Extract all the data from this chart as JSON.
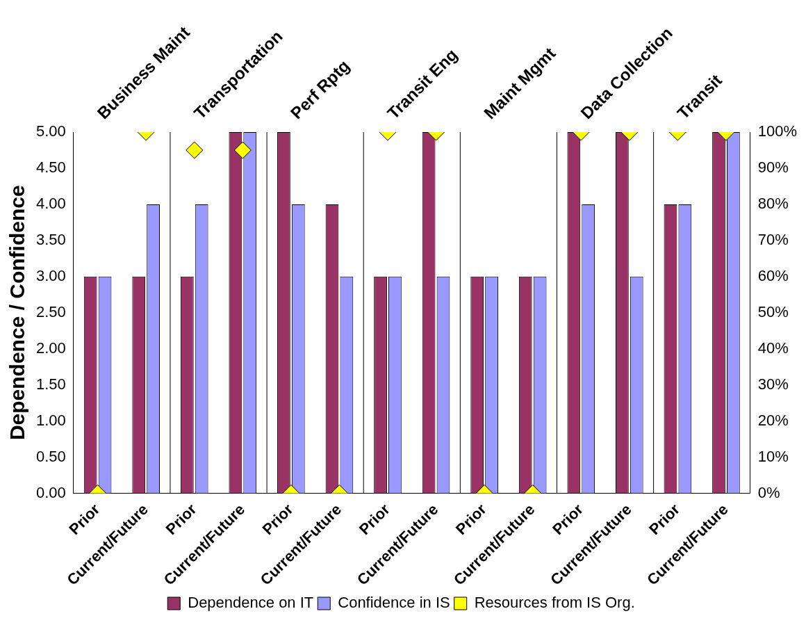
{
  "chart_data": {
    "type": "bar",
    "ylabel": "Dependence / Confidence",
    "categories": [
      "Prior",
      "Current/Future",
      "Prior",
      "Current/Future",
      "Prior",
      "Current/Future",
      "Prior",
      "Current/Future",
      "Prior",
      "Current/Future",
      "Prior",
      "Current/Future",
      "Prior",
      "Current/Future"
    ],
    "annotations": [
      "Business Maint",
      "Transportation",
      "Perf Rptg",
      "Transit Eng",
      "Maint Mgmt",
      "Data Collection",
      "Transit"
    ],
    "series": [
      {
        "name": "Dependence on IT",
        "color": "#993366",
        "values": [
          3,
          3,
          3,
          5,
          5,
          4,
          3,
          5,
          3,
          3,
          5,
          5,
          4,
          5
        ]
      },
      {
        "name": "Confidence in IS",
        "color": "#9999ff",
        "values": [
          3,
          4,
          4,
          5,
          4,
          3,
          3,
          3,
          3,
          3,
          4,
          3,
          4,
          5
        ]
      },
      {
        "name": "Resources from IS Org.",
        "type": "scatter",
        "axis": "y2",
        "marker": "diamond",
        "color": "#ffff00",
        "values": [
          0,
          100,
          95,
          95,
          0,
          0,
          100,
          100,
          0,
          0,
          100,
          100,
          100,
          100
        ]
      }
    ],
    "ylim": [
      0,
      5
    ],
    "yticks": [
      {
        "value": 0,
        "label": "0.00"
      },
      {
        "value": 0.5,
        "label": "0.50"
      },
      {
        "value": 1,
        "label": "1.00"
      },
      {
        "value": 1.5,
        "label": "1.50"
      },
      {
        "value": 2,
        "label": "2.00"
      },
      {
        "value": 2.5,
        "label": "2.50"
      },
      {
        "value": 3,
        "label": "3.00"
      },
      {
        "value": 3.5,
        "label": "3.50"
      },
      {
        "value": 4,
        "label": "4.00"
      },
      {
        "value": 4.5,
        "label": "4.50"
      },
      {
        "value": 5,
        "label": "5.00"
      }
    ],
    "y2lim": [
      0,
      100
    ],
    "y2ticks": [
      {
        "value": 0,
        "label": "0%"
      },
      {
        "value": 10,
        "label": "10%"
      },
      {
        "value": 20,
        "label": "20%"
      },
      {
        "value": 30,
        "label": "30%"
      },
      {
        "value": 40,
        "label": "40%"
      },
      {
        "value": 50,
        "label": "50%"
      },
      {
        "value": 60,
        "label": "60%"
      },
      {
        "value": 70,
        "label": "70%"
      },
      {
        "value": 80,
        "label": "80%"
      },
      {
        "value": 90,
        "label": "90%"
      },
      {
        "value": 100,
        "label": "100%"
      }
    ],
    "grid": "x",
    "legend": "bottom"
  }
}
